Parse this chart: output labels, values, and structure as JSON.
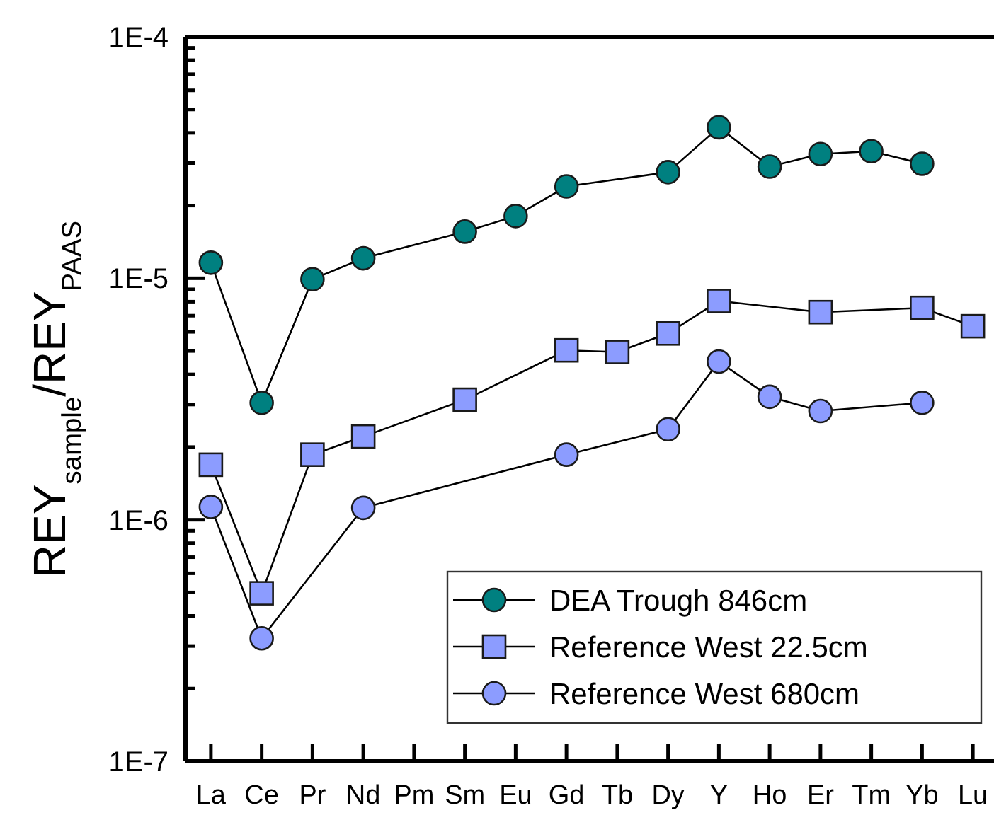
{
  "chart_data": {
    "type": "line",
    "ylabel": "REY$_{sample}$/REY$_{PAAS}$",
    "categories": [
      "La",
      "Ce",
      "Pr",
      "Nd",
      "Pm",
      "Sm",
      "Eu",
      "Gd",
      "Tb",
      "Dy",
      "Y",
      "Ho",
      "Er",
      "Tm",
      "Yb",
      "Lu"
    ],
    "log": true,
    "ylim": [
      1e-07,
      0.0001
    ],
    "yticks": [
      {
        "value": 1e-07,
        "label": "1E-7"
      },
      {
        "value": 2e-07,
        "label": null
      },
      {
        "value": 3e-07,
        "label": null
      },
      {
        "value": 4e-07,
        "label": null
      },
      {
        "value": 5e-07,
        "label": null
      },
      {
        "value": 6e-07,
        "label": null
      },
      {
        "value": 7e-07,
        "label": null
      },
      {
        "value": 8e-07,
        "label": null
      },
      {
        "value": 9e-07,
        "label": null
      },
      {
        "value": 1e-06,
        "label": "1E-6"
      },
      {
        "value": 2e-06,
        "label": null
      },
      {
        "value": 3e-06,
        "label": null
      },
      {
        "value": 4e-06,
        "label": null
      },
      {
        "value": 5e-06,
        "label": null
      },
      {
        "value": 6e-06,
        "label": null
      },
      {
        "value": 7e-06,
        "label": null
      },
      {
        "value": 8e-06,
        "label": null
      },
      {
        "value": 9e-06,
        "label": null
      },
      {
        "value": 1e-05,
        "label": "1E-5"
      },
      {
        "value": 2e-05,
        "label": null
      },
      {
        "value": 3e-05,
        "label": null
      },
      {
        "value": 4e-05,
        "label": null
      },
      {
        "value": 5e-05,
        "label": null
      },
      {
        "value": 6e-05,
        "label": null
      },
      {
        "value": 7e-05,
        "label": null
      },
      {
        "value": 8e-05,
        "label": null
      },
      {
        "value": 9e-05,
        "label": null
      },
      {
        "value": 0.0001,
        "label": "1E-4"
      }
    ],
    "grid": false,
    "legend": "bottom right",
    "series": [
      {
        "name": "DEA Trough 846cm",
        "color": "#008080",
        "marker": "circle",
        "values": [
          1.16e-05,
          3.05e-06,
          9.9e-06,
          1.21e-05,
          null,
          1.56e-05,
          1.81e-05,
          2.4e-05,
          null,
          2.75e-05,
          4.22e-05,
          2.9e-05,
          3.27e-05,
          3.36e-05,
          2.98e-05,
          null
        ]
      },
      {
        "name": "Reference West 22.5cm",
        "color": "#8c9cff",
        "marker": "square",
        "values": [
          1.69e-06,
          4.96e-07,
          1.86e-06,
          2.21e-06,
          null,
          3.14e-06,
          null,
          5.03e-06,
          4.95e-06,
          5.91e-06,
          8.05e-06,
          null,
          7.24e-06,
          null,
          7.54e-06,
          6.33e-06
        ]
      },
      {
        "name": "Reference West 680cm",
        "color": "#8c9cff",
        "marker": "circle",
        "values": [
          1.13e-06,
          3.23e-07,
          null,
          1.12e-06,
          null,
          null,
          null,
          1.86e-06,
          null,
          2.37e-06,
          4.52e-06,
          3.23e-06,
          2.82e-06,
          null,
          3.05e-06,
          null
        ]
      }
    ]
  }
}
